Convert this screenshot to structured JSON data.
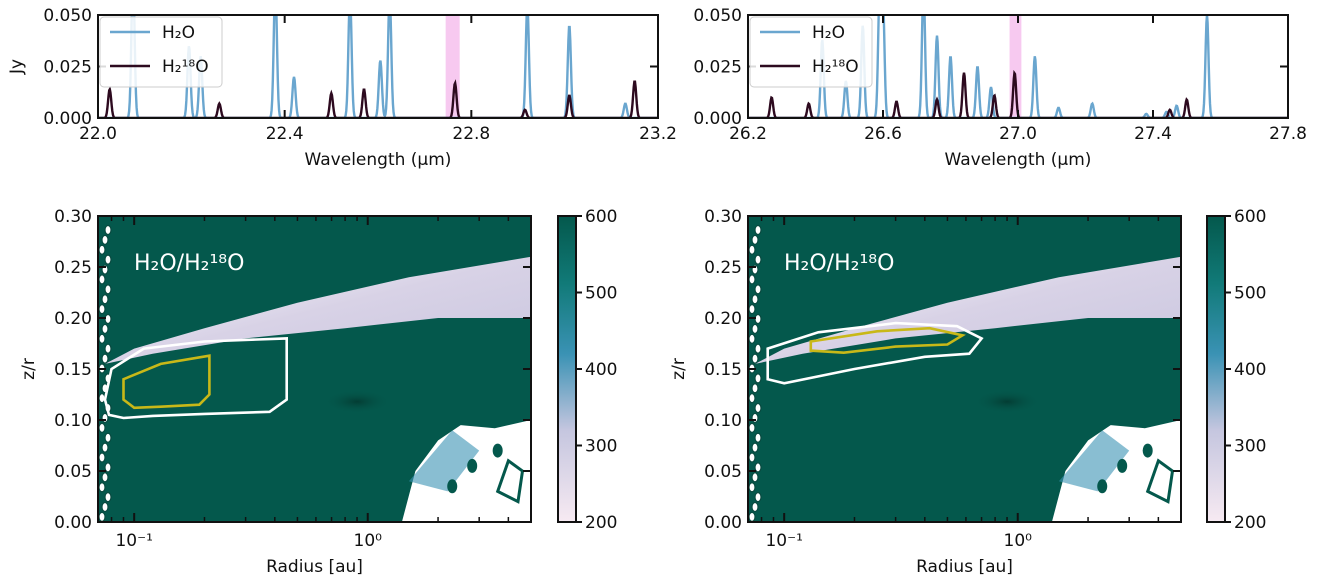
{
  "figure": {
    "colors": {
      "h2o_line": "#6aa6cf",
      "h218o_line": "#2d0a1f",
      "highlight": "#ee88dd",
      "white_contour": "#ffffff",
      "yellow_contour": "#c8b818",
      "cmap_low": "#f7eaf2",
      "cmap_mid": "#3a92b4",
      "cmap_high": "#04584c"
    }
  },
  "chart_data": [
    {
      "type": "line",
      "panel": "top-left",
      "xlabel": "Wavelength (μm)",
      "ylabel": "Jy",
      "xlim": [
        22.0,
        23.2
      ],
      "ylim": [
        0.0,
        0.05
      ],
      "xticks": [
        "22.0",
        "22.4",
        "22.8",
        "23.2"
      ],
      "yticks": [
        "0.000",
        "0.025",
        "0.050"
      ],
      "legend_position": "top-left",
      "highlight_band": [
        22.745,
        22.775
      ],
      "series": [
        {
          "name": "H₂O",
          "color": "#6aa6cf",
          "peaks": [
            [
              22.075,
              0.07
            ],
            [
              22.195,
              0.035
            ],
            [
              22.22,
              0.03
            ],
            [
              22.38,
              0.065
            ],
            [
              22.42,
              0.02
            ],
            [
              22.54,
              0.06
            ],
            [
              22.605,
              0.028
            ],
            [
              22.625,
              0.06
            ],
            [
              22.92,
              0.055
            ],
            [
              23.01,
              0.045
            ],
            [
              23.13,
              0.007
            ]
          ]
        },
        {
          "name": "H₂¹⁸O",
          "color": "#2d0a1f",
          "peaks": [
            [
              22.025,
              0.014
            ],
            [
              22.26,
              0.007
            ],
            [
              22.5,
              0.012
            ],
            [
              22.57,
              0.014
            ],
            [
              22.765,
              0.017
            ],
            [
              22.915,
              0.004
            ],
            [
              23.01,
              0.011
            ],
            [
              23.15,
              0.018
            ]
          ]
        }
      ]
    },
    {
      "type": "line",
      "panel": "top-right",
      "xlabel": "Wavelength (μm)",
      "ylabel": "",
      "xlim": [
        26.2,
        27.8
      ],
      "ylim": [
        0.0,
        0.05
      ],
      "xticks": [
        "26.2",
        "26.6",
        "27.0",
        "27.4",
        "27.8"
      ],
      "yticks": [
        "0.000",
        "0.025",
        "0.050"
      ],
      "legend_position": "top-left",
      "highlight_band": [
        26.975,
        27.01
      ],
      "series": [
        {
          "name": "H₂O",
          "color": "#6aa6cf",
          "peaks": [
            [
              26.42,
              0.038
            ],
            [
              26.49,
              0.018
            ],
            [
              26.54,
              0.045
            ],
            [
              26.59,
              0.06
            ],
            [
              26.6,
              0.055
            ],
            [
              26.72,
              0.065
            ],
            [
              26.76,
              0.04
            ],
            [
              26.8,
              0.03
            ],
            [
              26.88,
              0.025
            ],
            [
              26.92,
              0.015
            ],
            [
              27.05,
              0.03
            ],
            [
              27.12,
              0.005
            ],
            [
              27.22,
              0.007
            ],
            [
              27.38,
              0.002
            ],
            [
              27.44,
              0.003
            ],
            [
              27.47,
              0.006
            ],
            [
              27.56,
              0.05
            ]
          ]
        },
        {
          "name": "H₂¹⁸O",
          "color": "#2d0a1f",
          "peaks": [
            [
              26.27,
              0.01
            ],
            [
              26.38,
              0.007
            ],
            [
              26.64,
              0.008
            ],
            [
              26.76,
              0.009
            ],
            [
              26.84,
              0.022
            ],
            [
              26.93,
              0.011
            ],
            [
              26.99,
              0.022
            ],
            [
              27.45,
              0.004
            ],
            [
              27.5,
              0.009
            ]
          ]
        }
      ]
    },
    {
      "type": "heatmap",
      "panel": "bottom-left",
      "annotation": "H₂O/H₂¹⁸O",
      "xlabel": "Radius [au]",
      "ylabel": "z/r",
      "xscale": "log",
      "xlim": [
        0.07,
        5.0
      ],
      "ylim": [
        0.0,
        0.3
      ],
      "xticks": [
        "10⁻¹",
        "10⁰"
      ],
      "yticks": [
        "0.00",
        "0.05",
        "0.10",
        "0.15",
        "0.20",
        "0.25",
        "0.30"
      ],
      "colorbar": {
        "range": [
          200,
          600
        ],
        "ticks": [
          "200",
          "300",
          "400",
          "500",
          "600"
        ]
      },
      "white_contour": [
        [
          0.078,
          0.105
        ],
        [
          0.075,
          0.12
        ],
        [
          0.08,
          0.15
        ],
        [
          0.11,
          0.17
        ],
        [
          0.2,
          0.177
        ],
        [
          0.45,
          0.18
        ],
        [
          0.45,
          0.12
        ],
        [
          0.38,
          0.108
        ],
        [
          0.2,
          0.106
        ],
        [
          0.12,
          0.104
        ],
        [
          0.09,
          0.102
        ]
      ],
      "yellow_contour": [
        [
          0.09,
          0.12
        ],
        [
          0.09,
          0.14
        ],
        [
          0.13,
          0.155
        ],
        [
          0.21,
          0.163
        ],
        [
          0.21,
          0.125
        ],
        [
          0.19,
          0.115
        ],
        [
          0.13,
          0.113
        ],
        [
          0.1,
          0.112
        ]
      ]
    },
    {
      "type": "heatmap",
      "panel": "bottom-right",
      "annotation": "H₂O/H₂¹⁸O",
      "xlabel": "Radius [au]",
      "ylabel": "z/r",
      "xscale": "log",
      "xlim": [
        0.07,
        5.0
      ],
      "ylim": [
        0.0,
        0.3
      ],
      "xticks": [
        "10⁻¹",
        "10⁰"
      ],
      "yticks": [
        "0.00",
        "0.05",
        "0.10",
        "0.15",
        "0.20",
        "0.25",
        "0.30"
      ],
      "colorbar": {
        "range": [
          200,
          600
        ],
        "ticks": [
          "200",
          "300",
          "400",
          "500",
          "600"
        ]
      },
      "white_contour": [
        [
          0.085,
          0.14
        ],
        [
          0.085,
          0.17
        ],
        [
          0.14,
          0.186
        ],
        [
          0.3,
          0.195
        ],
        [
          0.55,
          0.192
        ],
        [
          0.7,
          0.18
        ],
        [
          0.62,
          0.165
        ],
        [
          0.4,
          0.162
        ],
        [
          0.2,
          0.15
        ],
        [
          0.1,
          0.136
        ]
      ],
      "yellow_contour": [
        [
          0.13,
          0.168
        ],
        [
          0.13,
          0.177
        ],
        [
          0.25,
          0.187
        ],
        [
          0.42,
          0.19
        ],
        [
          0.58,
          0.183
        ],
        [
          0.5,
          0.174
        ],
        [
          0.3,
          0.172
        ],
        [
          0.18,
          0.166
        ]
      ]
    }
  ]
}
